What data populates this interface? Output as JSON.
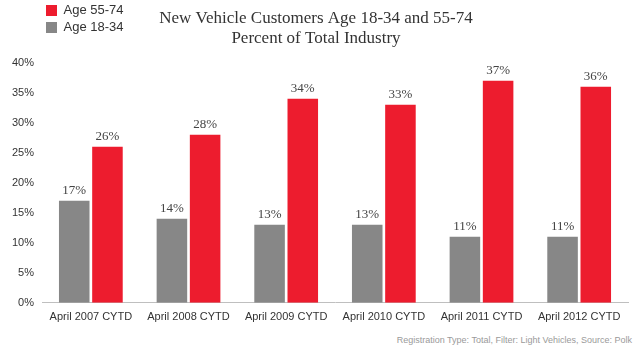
{
  "chart_data": {
    "type": "bar",
    "title": "New Vehicle Customers Age 18-34 and 55-74",
    "subtitle": "Percent of Total Industry",
    "annotation": "Registration Type: Total, Filter: Light Vehicles, Source: Polk",
    "categories": [
      "April 2007 CYTD",
      "April 2008 CYTD",
      "April 2009 CYTD",
      "April 2010 CYTD",
      "April 2011 CYTD",
      "April 2012 CYTD"
    ],
    "series": [
      {
        "name": "Age 18-34",
        "color": "#878787",
        "values": [
          17,
          14,
          13,
          13,
          11,
          11
        ],
        "value_labels": [
          "17%",
          "14%",
          "13%",
          "13%",
          "11%",
          "11%"
        ]
      },
      {
        "name": "Age 55-74",
        "color": "#ed1c2e",
        "values": [
          26,
          28,
          34,
          33,
          37,
          36
        ],
        "value_labels": [
          "26%",
          "28%",
          "34%",
          "33%",
          "37%",
          "36%"
        ]
      }
    ],
    "ylim": [
      0,
      40
    ],
    "yticks": [
      {
        "value": 0,
        "label": "0%"
      },
      {
        "value": 5,
        "label": "5%"
      },
      {
        "value": 10,
        "label": "10%"
      },
      {
        "value": 15,
        "label": "15%"
      },
      {
        "value": 20,
        "label": "20%"
      },
      {
        "value": 25,
        "label": "25%"
      },
      {
        "value": 30,
        "label": "30%"
      },
      {
        "value": 35,
        "label": "35%"
      },
      {
        "value": 40,
        "label": "40%"
      }
    ],
    "grid": false,
    "legend": "upper left",
    "data_labels": true
  }
}
